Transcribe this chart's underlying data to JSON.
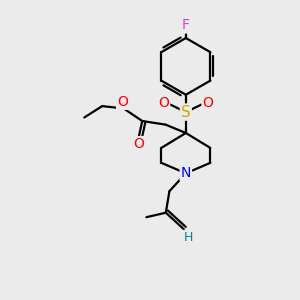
{
  "bg_color": "#ebebeb",
  "bond_color": "#000000",
  "bond_width": 1.6,
  "atom_colors": {
    "F": "#cc44cc",
    "O": "#ff0000",
    "N": "#0000ff",
    "S": "#ccaa00",
    "C": "#000000",
    "H": "#008888"
  },
  "font_size": 9.5
}
